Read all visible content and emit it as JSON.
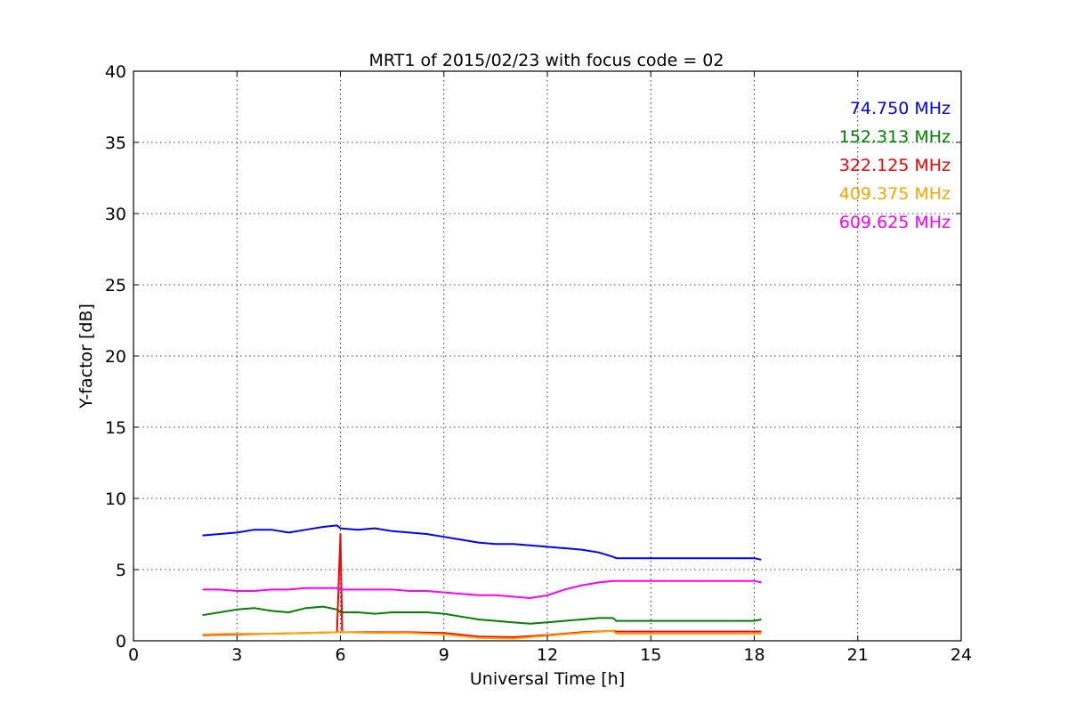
{
  "chart_data": {
    "type": "line",
    "title": "MRT1 of 2015/02/23 with focus code = 02",
    "xlabel": "Universal Time [h]",
    "ylabel": "Y-factor [dB]",
    "xlim": [
      0,
      24
    ],
    "ylim": [
      0,
      40
    ],
    "xticks": [
      0,
      3,
      6,
      9,
      12,
      15,
      18,
      21,
      24
    ],
    "yticks": [
      0,
      5,
      10,
      15,
      20,
      25,
      30,
      35,
      40
    ],
    "grid": true,
    "legend_position": "top-right",
    "series": [
      {
        "name": "74.750 MHz",
        "color": "#0000ff",
        "x": [
          2.0,
          2.5,
          3.0,
          3.5,
          4.0,
          4.5,
          5.0,
          5.5,
          5.9,
          6.0,
          6.5,
          7.0,
          7.5,
          8.0,
          8.5,
          9.0,
          9.5,
          10.0,
          10.5,
          11.0,
          11.5,
          12.0,
          12.5,
          13.0,
          13.5,
          13.9,
          14.0,
          18.0,
          18.2
        ],
        "y": [
          7.4,
          7.5,
          7.6,
          7.8,
          7.8,
          7.6,
          7.8,
          8.0,
          8.1,
          7.9,
          7.8,
          7.9,
          7.7,
          7.6,
          7.5,
          7.3,
          7.1,
          6.9,
          6.8,
          6.8,
          6.7,
          6.6,
          6.5,
          6.4,
          6.2,
          5.9,
          5.8,
          5.8,
          5.7
        ]
      },
      {
        "name": "152.313 MHz",
        "color": "#008000",
        "x": [
          2.0,
          2.5,
          3.0,
          3.5,
          4.0,
          4.5,
          5.0,
          5.5,
          5.9,
          6.0,
          6.5,
          7.0,
          7.5,
          8.0,
          8.5,
          9.0,
          9.5,
          10.0,
          10.5,
          11.0,
          11.5,
          12.0,
          12.5,
          13.0,
          13.5,
          13.9,
          14.0,
          18.0,
          18.2
        ],
        "y": [
          1.8,
          2.0,
          2.2,
          2.3,
          2.1,
          2.0,
          2.3,
          2.4,
          2.2,
          2.0,
          2.0,
          1.9,
          2.0,
          2.0,
          2.0,
          1.9,
          1.7,
          1.5,
          1.4,
          1.3,
          1.2,
          1.3,
          1.4,
          1.5,
          1.6,
          1.6,
          1.4,
          1.4,
          1.5
        ]
      },
      {
        "name": "322.125 MHz",
        "color": "#ff0000",
        "x": [
          2.0,
          3.0,
          4.0,
          5.0,
          5.9,
          6.0,
          6.05,
          6.1,
          7.0,
          8.0,
          9.0,
          10.0,
          11.0,
          12.0,
          13.0,
          13.9,
          14.0,
          18.0,
          18.2
        ],
        "y": [
          0.4,
          0.45,
          0.5,
          0.55,
          0.6,
          7.5,
          0.6,
          0.6,
          0.6,
          0.6,
          0.55,
          0.3,
          0.25,
          0.4,
          0.6,
          0.7,
          0.65,
          0.65,
          0.65
        ]
      },
      {
        "name": "409.375 MHz",
        "color": "#ffa500",
        "x": [
          2.0,
          3.0,
          4.0,
          5.0,
          5.9,
          6.0,
          6.1,
          7.0,
          8.0,
          9.0,
          10.0,
          11.0,
          12.0,
          13.0,
          13.9,
          14.0,
          18.0,
          18.2
        ],
        "y": [
          0.45,
          0.5,
          0.5,
          0.55,
          0.6,
          0.65,
          0.6,
          0.55,
          0.55,
          0.45,
          0.2,
          0.15,
          0.35,
          0.55,
          0.7,
          0.5,
          0.5,
          0.5
        ]
      },
      {
        "name": "609.625 MHz",
        "color": "#ff00ff",
        "x": [
          2.0,
          2.5,
          3.0,
          3.5,
          4.0,
          4.5,
          5.0,
          5.5,
          5.9,
          6.0,
          6.5,
          7.0,
          7.5,
          8.0,
          8.5,
          9.0,
          9.5,
          10.0,
          10.5,
          11.0,
          11.5,
          12.0,
          12.5,
          13.0,
          13.5,
          13.9,
          14.0,
          18.0,
          18.2
        ],
        "y": [
          3.6,
          3.6,
          3.5,
          3.5,
          3.6,
          3.6,
          3.7,
          3.7,
          3.7,
          3.6,
          3.6,
          3.6,
          3.6,
          3.5,
          3.5,
          3.4,
          3.3,
          3.2,
          3.2,
          3.1,
          3.0,
          3.2,
          3.6,
          3.9,
          4.1,
          4.2,
          4.2,
          4.2,
          4.1
        ]
      }
    ]
  }
}
